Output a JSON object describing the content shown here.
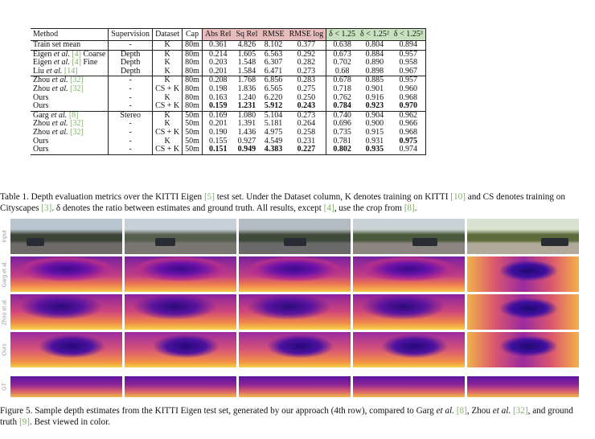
{
  "table": {
    "headers": [
      "Method",
      "Supervision",
      "Dataset",
      "Cap",
      "Abs Rel",
      "Sq Rel",
      "RMSE",
      "RMSE log",
      "δ < 1.25",
      "δ < 1.25²",
      "δ < 1.25³"
    ],
    "rows": [
      {
        "group": 0,
        "method": "Train set mean",
        "cite": "",
        "sup": "-",
        "ds": "K",
        "cap": "80m",
        "v": [
          "0.361",
          "4.826",
          "8.102",
          "0.377",
          "0.638",
          "0.804",
          "0.894"
        ],
        "bold": []
      },
      {
        "group": 1,
        "method": "Eigen et al. ",
        "cite": "[4]",
        "suffix": " Coarse",
        "sup": "Depth",
        "ds": "K",
        "cap": "80m",
        "v": [
          "0.214",
          "1.605",
          "6.563",
          "0.292",
          "0.673",
          "0.884",
          "0.957"
        ],
        "bold": []
      },
      {
        "group": 1,
        "method": "Eigen et al. ",
        "cite": "[4]",
        "suffix": " Fine",
        "sup": "Depth",
        "ds": "K",
        "cap": "80m",
        "v": [
          "0.203",
          "1.548",
          "6.307",
          "0.282",
          "0.702",
          "0.890",
          "0.958"
        ],
        "bold": []
      },
      {
        "group": 1,
        "method": "Liu et al. ",
        "cite": "[14]",
        "suffix": "",
        "sup": "Depth",
        "ds": "K",
        "cap": "80m",
        "v": [
          "0.201",
          "1.584",
          "6.471",
          "0.273",
          "0.68",
          "0.898",
          "0.967"
        ],
        "bold": []
      },
      {
        "group": 2,
        "method": "Zhou et al. ",
        "cite": "[32]",
        "suffix": "",
        "sup": "-",
        "ds": "K",
        "cap": "80m",
        "v": [
          "0.208",
          "1.768",
          "6.856",
          "0.283",
          "0.678",
          "0.885",
          "0.957"
        ],
        "bold": []
      },
      {
        "group": 2,
        "method": "Zhou et al. ",
        "cite": "[32]",
        "suffix": "",
        "sup": "-",
        "ds": "CS + K",
        "cap": "80m",
        "v": [
          "0.198",
          "1.836",
          "6.565",
          "0.275",
          "0.718",
          "0.901",
          "0.960"
        ],
        "bold": []
      },
      {
        "group": 2,
        "method": "Ours",
        "cite": "",
        "suffix": "",
        "sup": "-",
        "ds": "K",
        "cap": "80m",
        "v": [
          "0.163",
          "1.240",
          "6.220",
          "0.250",
          "0.762",
          "0.916",
          "0.968"
        ],
        "bold": []
      },
      {
        "group": 2,
        "method": "Ours",
        "cite": "",
        "suffix": "",
        "sup": "-",
        "ds": "CS + K",
        "cap": "80m",
        "v": [
          "0.159",
          "1.231",
          "5.912",
          "0.243",
          "0.784",
          "0.923",
          "0.970"
        ],
        "bold": [
          0,
          1,
          2,
          3,
          4,
          5,
          6
        ]
      },
      {
        "group": 3,
        "method": "Garg et al. ",
        "cite": "[8]",
        "suffix": "",
        "sup": "Stereo",
        "ds": "K",
        "cap": "50m",
        "v": [
          "0.169",
          "1.080",
          "5.104",
          "0.273",
          "0.740",
          "0.904",
          "0.962"
        ],
        "bold": []
      },
      {
        "group": 3,
        "method": "Zhou et al. ",
        "cite": "[32]",
        "suffix": "",
        "sup": "-",
        "ds": "K",
        "cap": "50m",
        "v": [
          "0.201",
          "1.391",
          "5.181",
          "0.264",
          "0.696",
          "0.900",
          "0.966"
        ],
        "bold": []
      },
      {
        "group": 3,
        "method": "Zhou et al. ",
        "cite": "[32]",
        "suffix": "",
        "sup": "-",
        "ds": "CS + K",
        "cap": "50m",
        "v": [
          "0.190",
          "1.436",
          "4.975",
          "0.258",
          "0.735",
          "0.915",
          "0.968"
        ],
        "bold": []
      },
      {
        "group": 3,
        "method": "Ours",
        "cite": "",
        "suffix": "",
        "sup": "-",
        "ds": "K",
        "cap": "50m",
        "v": [
          "0.155",
          "0.927",
          "4.549",
          "0.231",
          "0.781",
          "0.931",
          "0.975"
        ],
        "bold": [
          6
        ]
      },
      {
        "group": 3,
        "method": "Ours",
        "cite": "",
        "suffix": "",
        "sup": "-",
        "ds": "CS + K",
        "cap": "50m",
        "v": [
          "0.151",
          "0.949",
          "4.383",
          "0.227",
          "0.802",
          "0.935",
          "0.974"
        ],
        "bold": [
          0,
          1,
          2,
          3,
          4,
          5
        ]
      }
    ]
  },
  "table_caption": {
    "p1": "Table 1. Depth evaluation metrics over the KITTI Eigen ",
    "c1": "[5]",
    "p2": " test set. Under the Dataset column, K denotes training on KITTI  ",
    "c2": "[10]",
    "p3": " and CS denotes training on Cityscapes ",
    "c3": "[3]",
    "p4": ". δ denotes the ratio between estimates and ground truth. All results, except ",
    "c4": "[4]",
    "p5": ", use the crop from ",
    "c5": "[8]",
    "p6": "."
  },
  "figure": {
    "row_labels": [
      "Input",
      "Garg et al.",
      "Zhou et al.",
      "Ours",
      "GT"
    ]
  },
  "figure_caption": {
    "p1": "Figure 5. Sample depth estimates from the KITTI Eigen test set, generated by our approach (4th row), compared to Garg ",
    "i1": "et al.",
    "p2": " ",
    "c1": "[8]",
    "p3": ", Zhou ",
    "i2": "et al.",
    "p4": " ",
    "c2": "[32]",
    "p5": ", and ground truth ",
    "c3": "[9]",
    "p6": ". Best viewed in color."
  },
  "colors": {
    "err_header": "#e7bcbc",
    "acc_header": "#c8e2c0",
    "cite": "#7fb06a"
  }
}
